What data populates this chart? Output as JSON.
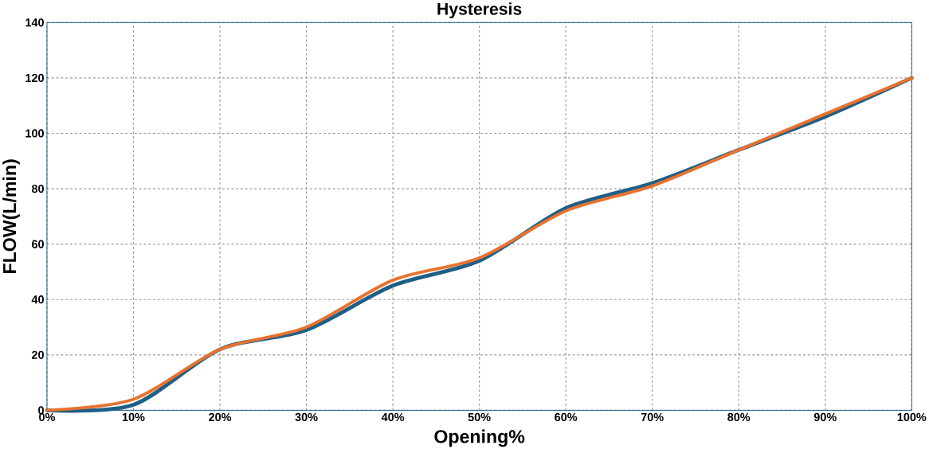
{
  "chart_data": {
    "type": "line",
    "title": "Hysteresis",
    "xlabel": "Opening%",
    "ylabel": "FLOW(L/min)",
    "x": [
      0,
      10,
      20,
      30,
      40,
      50,
      60,
      70,
      80,
      90,
      100
    ],
    "series": [
      {
        "color": "#1f5f86",
        "values": [
          0,
          2,
          22,
          29,
          45,
          54,
          73,
          82,
          94,
          106,
          120
        ]
      },
      {
        "color": "#e8722f",
        "values": [
          0,
          4,
          22,
          30,
          47,
          55,
          72,
          81,
          94,
          107,
          120
        ]
      }
    ],
    "xlim": [
      0,
      100
    ],
    "ylim": [
      0,
      140
    ],
    "xticks": [
      {
        "value": 0,
        "label": "0%"
      },
      {
        "value": 10,
        "label": "10%"
      },
      {
        "value": 20,
        "label": "20%"
      },
      {
        "value": 30,
        "label": "30%"
      },
      {
        "value": 40,
        "label": "40%"
      },
      {
        "value": 50,
        "label": "50%"
      },
      {
        "value": 60,
        "label": "60%"
      },
      {
        "value": 70,
        "label": "70%"
      },
      {
        "value": 80,
        "label": "80%"
      },
      {
        "value": 90,
        "label": "90%"
      },
      {
        "value": 100,
        "label": "100%"
      }
    ],
    "yticks": [
      0,
      20,
      40,
      60,
      80,
      100,
      120,
      140
    ],
    "grid": true,
    "marker": "none",
    "line_style": "solid"
  }
}
